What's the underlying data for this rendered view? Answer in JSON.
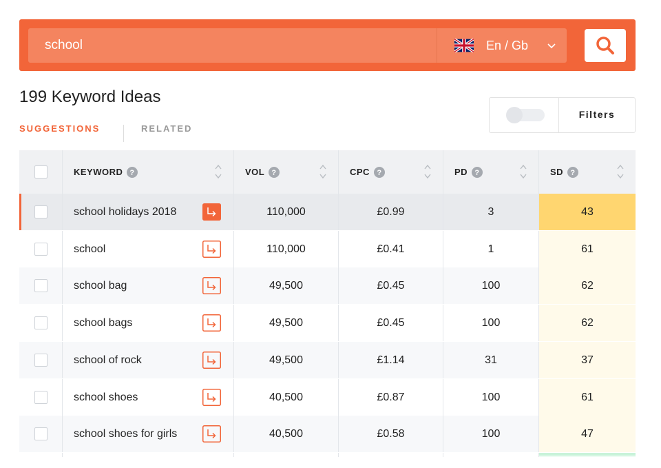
{
  "search": {
    "query": "school",
    "language_label": "En / Gb"
  },
  "summary": {
    "title": "199 Keyword Ideas"
  },
  "tabs": [
    {
      "label": "SUGGESTIONS",
      "active": true
    },
    {
      "label": "RELATED",
      "active": false
    }
  ],
  "filters": {
    "label": "Filters",
    "enabled": false
  },
  "table": {
    "headers": {
      "keyword": "KEYWORD",
      "vol": "VOL",
      "cpc": "CPC",
      "pd": "PD",
      "sd": "SD"
    },
    "rows": [
      {
        "keyword": "school holidays 2018",
        "vol": "110,000",
        "cpc": "£0.99",
        "pd": "3",
        "sd": "43",
        "selected": true
      },
      {
        "keyword": "school",
        "vol": "110,000",
        "cpc": "£0.41",
        "pd": "1",
        "sd": "61",
        "selected": false
      },
      {
        "keyword": "school bag",
        "vol": "49,500",
        "cpc": "£0.45",
        "pd": "100",
        "sd": "62",
        "selected": false
      },
      {
        "keyword": "school bags",
        "vol": "49,500",
        "cpc": "£0.45",
        "pd": "100",
        "sd": "62",
        "selected": false
      },
      {
        "keyword": "school of rock",
        "vol": "49,500",
        "cpc": "£1.14",
        "pd": "31",
        "sd": "37",
        "selected": false
      },
      {
        "keyword": "school shoes",
        "vol": "40,500",
        "cpc": "£0.87",
        "pd": "100",
        "sd": "61",
        "selected": false
      },
      {
        "keyword": "school shoes for girls",
        "vol": "40,500",
        "cpc": "£0.58",
        "pd": "100",
        "sd": "47",
        "selected": false
      }
    ]
  },
  "colors": {
    "accent": "#f26539",
    "accent_light": "#f4845f",
    "sd_highlight": "#ffd670",
    "sd_light": "#fffaea",
    "row_alt": "#f7f8fa",
    "row_selected": "#e8eaed"
  },
  "icons": {
    "flag": "uk-flag-icon",
    "dropdown": "chevron-down-icon",
    "search": "search-icon",
    "help": "question-icon",
    "sort": "sort-icon",
    "open_keyword": "arrow-into-icon"
  }
}
